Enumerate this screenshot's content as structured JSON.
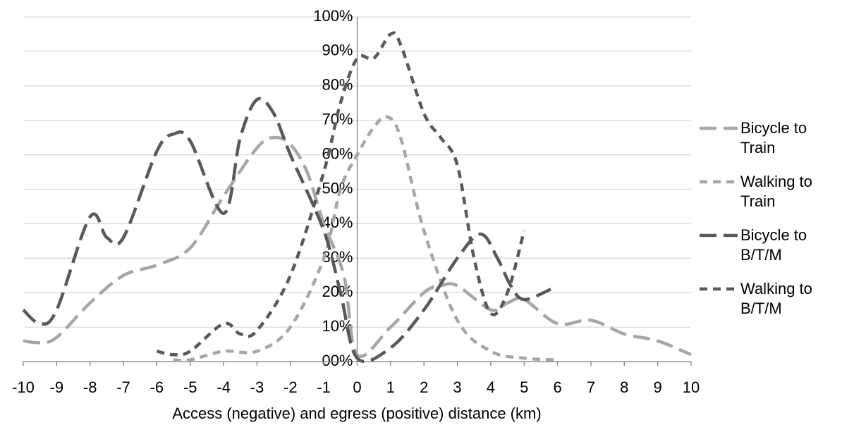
{
  "chart_data": {
    "type": "line",
    "xlabel": "Access (negative) and egress (positive) distance (km)",
    "xlim": [
      -10,
      10
    ],
    "xticks": [
      -10,
      -9,
      -8,
      -7,
      -6,
      -5,
      -4,
      -3,
      -2,
      -1,
      0,
      1,
      2,
      3,
      4,
      5,
      6,
      7,
      8,
      9,
      10
    ],
    "ylim": [
      0,
      100
    ],
    "yticks": [
      {
        "value": 0,
        "label": "00%"
      },
      {
        "value": 10,
        "label": "10%"
      },
      {
        "value": 20,
        "label": "20%"
      },
      {
        "value": 30,
        "label": "30%"
      },
      {
        "value": 40,
        "label": "40%"
      },
      {
        "value": 50,
        "label": "50%"
      },
      {
        "value": 60,
        "label": "60%"
      },
      {
        "value": 70,
        "label": "70%"
      },
      {
        "value": 80,
        "label": "80%"
      },
      {
        "value": 90,
        "label": "90%"
      },
      {
        "value": 100,
        "label": "100%"
      }
    ],
    "grid": true,
    "legend": "right",
    "series": [
      {
        "name": "Bicycle to Train",
        "color": "#a6a6a6",
        "dash": "long",
        "x": [
          -10,
          -9.5,
          -9,
          -8,
          -7,
          -6,
          -5,
          -4,
          -3,
          -2.5,
          -2,
          -1.5,
          -1,
          -0.4,
          0,
          1,
          2,
          2.5,
          3,
          4,
          4.5,
          5,
          6,
          7,
          8,
          9,
          10
        ],
        "values": [
          6,
          5.5,
          7,
          17,
          25,
          28,
          33,
          48,
          62,
          65,
          63,
          55,
          40,
          25,
          2,
          10,
          20,
          22,
          22,
          15,
          17,
          18,
          11,
          12,
          8,
          6,
          2
        ]
      },
      {
        "name": "Walking to Train",
        "color": "#a6a6a6",
        "dash": "short",
        "x": [
          -5.5,
          -5,
          -4,
          -3,
          -2,
          -1,
          -0.5,
          0,
          0.5,
          0.9,
          1.3,
          2,
          3,
          4,
          5,
          6
        ],
        "values": [
          0.5,
          0.5,
          3,
          3,
          10,
          30,
          50,
          60,
          68,
          71,
          65,
          38,
          12,
          3,
          1,
          0.5
        ]
      },
      {
        "name": "Bicycle to B/T/M",
        "color": "#595959",
        "dash": "long",
        "x": [
          -10,
          -9.5,
          -9,
          -8,
          -7.5,
          -7,
          -6,
          -5.5,
          -5,
          -4,
          -3.5,
          -3,
          -2.5,
          -2,
          -1,
          -0.5,
          0,
          1,
          2,
          3,
          3.7,
          4.2,
          4.6,
          5,
          5.8
        ],
        "values": [
          15,
          11,
          15,
          42,
          36,
          36,
          61,
          66,
          64,
          43,
          65,
          76,
          72,
          60,
          38,
          20,
          1,
          4,
          15,
          30,
          37,
          30,
          22,
          18,
          21
        ]
      },
      {
        "name": "Walking to B/T/M",
        "color": "#595959",
        "dash": "short",
        "x": [
          -6,
          -5.5,
          -5,
          -4,
          -3.5,
          -3,
          -2,
          -1,
          -0.5,
          0,
          0.5,
          1,
          1.3,
          2,
          2.5,
          3,
          3.5,
          4,
          4.5,
          5
        ],
        "values": [
          3,
          2,
          3,
          11,
          8,
          9,
          25,
          55,
          75,
          88,
          88,
          95,
          92,
          72,
          65,
          57,
          30,
          14,
          20,
          38
        ]
      }
    ]
  }
}
